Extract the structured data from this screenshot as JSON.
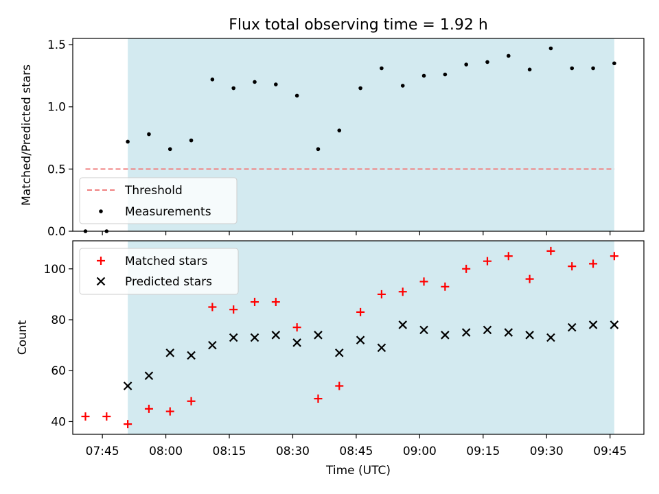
{
  "figure": {
    "title": "Flux total observing time = 1.92 h",
    "xlabel": "Time (UTC)"
  },
  "chart_data": [
    {
      "type": "scatter",
      "panel": "top",
      "ylabel": "Matched/Predicted stars",
      "ylim": [
        0.0,
        1.55
      ],
      "yticks": [
        0.0,
        0.5,
        1.0,
        1.5
      ],
      "ytick_labels": [
        "0.0",
        "0.5",
        "1.0",
        "1.5"
      ],
      "xlim": [
        "07:38",
        "09:53"
      ],
      "shaded_interval": {
        "start": "07:51",
        "end": "09:46",
        "color": "#d3eaf0"
      },
      "threshold": {
        "name": "Threshold",
        "y": 0.5,
        "x_start": "07:41",
        "x_end": "09:46",
        "color": "#f08080",
        "style": "dashed"
      },
      "series": [
        {
          "name": "Measurements",
          "marker": "dot",
          "color": "#000000",
          "x": [
            "07:41",
            "07:46",
            "07:51",
            "07:56",
            "08:01",
            "08:06",
            "08:11",
            "08:16",
            "08:21",
            "08:26",
            "08:31",
            "08:36",
            "08:41",
            "08:46",
            "08:51",
            "08:56",
            "09:01",
            "09:06",
            "09:11",
            "09:16",
            "09:21",
            "09:26",
            "09:31",
            "09:36",
            "09:41",
            "09:46"
          ],
          "y": [
            0.0,
            0.0,
            0.72,
            0.78,
            0.66,
            0.73,
            1.22,
            1.15,
            1.2,
            1.18,
            1.09,
            0.66,
            0.81,
            1.15,
            1.31,
            1.17,
            1.25,
            1.26,
            1.34,
            1.36,
            1.41,
            1.3,
            1.47,
            1.31,
            1.31,
            1.35
          ]
        }
      ],
      "legend": {
        "position": "lower-left",
        "entries": [
          "Threshold",
          "Measurements"
        ]
      }
    },
    {
      "type": "scatter",
      "panel": "bottom",
      "ylabel": "Count",
      "ylim": [
        35,
        111
      ],
      "yticks": [
        40,
        60,
        80,
        100
      ],
      "ytick_labels": [
        "40",
        "60",
        "80",
        "100"
      ],
      "xlim": [
        "07:38",
        "09:53"
      ],
      "xticks": [
        "07:45",
        "08:00",
        "08:15",
        "08:30",
        "08:45",
        "09:00",
        "09:15",
        "09:30",
        "09:45"
      ],
      "xtick_labels": [
        "07:45",
        "08:00",
        "08:15",
        "08:30",
        "08:45",
        "09:00",
        "09:15",
        "09:30",
        "09:45"
      ],
      "shaded_interval": {
        "start": "07:51",
        "end": "09:46",
        "color": "#d3eaf0"
      },
      "series": [
        {
          "name": "Matched stars",
          "marker": "plus",
          "color": "#ff0000",
          "x": [
            "07:41",
            "07:46",
            "07:51",
            "07:56",
            "08:01",
            "08:06",
            "08:11",
            "08:16",
            "08:21",
            "08:26",
            "08:31",
            "08:36",
            "08:41",
            "08:46",
            "08:51",
            "08:56",
            "09:01",
            "09:06",
            "09:11",
            "09:16",
            "09:21",
            "09:26",
            "09:31",
            "09:36",
            "09:41",
            "09:46"
          ],
          "y": [
            42,
            42,
            39,
            45,
            44,
            48,
            85,
            84,
            87,
            87,
            77,
            49,
            54,
            83,
            90,
            91,
            95,
            93,
            100,
            103,
            105,
            96,
            107,
            101,
            102,
            105
          ]
        },
        {
          "name": "Predicted stars",
          "marker": "x",
          "color": "#000000",
          "x": [
            "07:51",
            "07:56",
            "08:01",
            "08:06",
            "08:11",
            "08:16",
            "08:21",
            "08:26",
            "08:31",
            "08:36",
            "08:41",
            "08:46",
            "08:51",
            "08:56",
            "09:01",
            "09:06",
            "09:11",
            "09:16",
            "09:21",
            "09:26",
            "09:31",
            "09:36",
            "09:41",
            "09:46"
          ],
          "y": [
            54,
            58,
            67,
            66,
            70,
            73,
            73,
            74,
            71,
            74,
            67,
            72,
            69,
            78,
            76,
            74,
            75,
            76,
            75,
            74,
            73,
            77,
            78,
            78
          ]
        }
      ],
      "legend": {
        "position": "top-left",
        "entries": [
          "Matched stars",
          "Predicted stars"
        ]
      }
    }
  ]
}
